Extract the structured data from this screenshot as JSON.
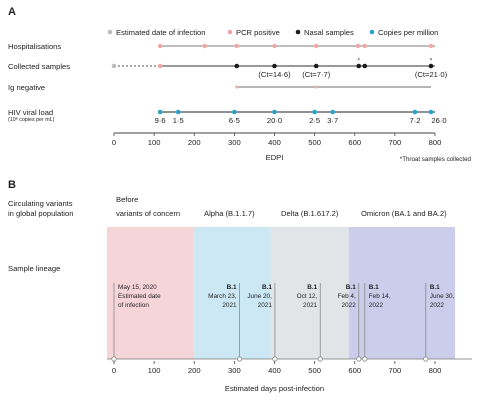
{
  "panelA": {
    "letter": "A",
    "legend": [
      {
        "label": "Estimated date of infection",
        "color": "#bdbdbd"
      },
      {
        "label": "PCR positive",
        "color": "#f4a6a6"
      },
      {
        "label": "Nasal samples",
        "color": "#1a1a1a"
      },
      {
        "label": "Copies per million",
        "color": "#2aa3c9"
      }
    ],
    "rows": [
      {
        "label": "Hospitalisations"
      },
      {
        "label": "Collected samples"
      },
      {
        "label": "Ig negative"
      },
      {
        "label": "HIV viral load",
        "sublabel": "(10⁶ copies per mL)"
      }
    ],
    "axis": {
      "ticks": [
        0,
        100,
        200,
        300,
        400,
        500,
        600,
        700,
        800
      ],
      "xlabel": "EDPI",
      "domain": [
        0,
        800
      ]
    },
    "hospitalisation_days": [
      115,
      226,
      306,
      400,
      504,
      608,
      625,
      790
    ],
    "collected_samples": {
      "infection_day": 0,
      "samples": [
        306,
        400,
        504,
        610,
        625,
        790
      ],
      "throat_markers": [
        610,
        790
      ],
      "throat_marker_symbol": "*",
      "ct_labels": [
        {
          "day": 400,
          "text": "(Ct=14·6)"
        },
        {
          "day": 504,
          "text": "(Ct=7·7)"
        },
        {
          "day": 790,
          "text": "(Ct=21·0)"
        }
      ]
    },
    "ig_negative": {
      "start": 306,
      "end": 790,
      "marks": [
        306,
        504
      ]
    },
    "viral_load": {
      "points": [
        {
          "day": 115,
          "text": "9·6"
        },
        {
          "day": 160,
          "text": "1·5"
        },
        {
          "day": 300,
          "text": "6·5"
        },
        {
          "day": 400,
          "text": "20·0"
        },
        {
          "day": 500,
          "text": "2·5"
        },
        {
          "day": 545,
          "text": "3·7"
        },
        {
          "day": 750,
          "text": "7·2"
        },
        {
          "day": 790,
          "text": "26·0"
        }
      ]
    },
    "footnote": "*Throat samples collected"
  },
  "panelB": {
    "letter": "B",
    "row_labels": {
      "variants": [
        "Circulating variants",
        "in global population"
      ],
      "lineage": "Sample lineage"
    },
    "eras": [
      {
        "title": [
          "Before",
          "variants of concern"
        ],
        "start": -20,
        "end": 200,
        "color": "#f5d5d8"
      },
      {
        "title": [
          "Alpha (B.1.1.7)"
        ],
        "start": 200,
        "end": 390,
        "color": "#cce8f4"
      },
      {
        "title": [
          "Delta (B.1.617.2)"
        ],
        "start": 390,
        "end": 585,
        "color": "#e2e4e7"
      },
      {
        "title": [
          "Omicron (BA.1 and BA.2)"
        ],
        "start": 585,
        "end": 850,
        "color": "#cbcdea"
      }
    ],
    "events": [
      {
        "day": 0,
        "lines": [
          "May 15, 2020",
          "Estimated date",
          "of infection"
        ],
        "side": "right"
      },
      {
        "day": 313,
        "lineage": "B.1",
        "lines": [
          "March 23,",
          "2021"
        ],
        "side": "left"
      },
      {
        "day": 401,
        "lineage": "B.1",
        "lines": [
          "June 20,",
          "2021"
        ],
        "side": "left"
      },
      {
        "day": 514,
        "lineage": "B.1",
        "lines": [
          "Oct 12,",
          "2021"
        ],
        "side": "left"
      },
      {
        "day": 610,
        "lineage": "B.1",
        "lines": [
          "Feb 4,",
          "2022"
        ],
        "side": "left"
      },
      {
        "day": 625,
        "lineage": "B.1",
        "lines": [
          "Feb 14,",
          "2022"
        ],
        "side": "right"
      },
      {
        "day": 777,
        "lineage": "B.1",
        "lines": [
          "June 30,",
          "2022"
        ],
        "side": "right"
      }
    ],
    "axis": {
      "ticks": [
        0,
        100,
        200,
        300,
        400,
        500,
        600,
        700,
        800
      ],
      "xlabel": "Estimated days post-infection",
      "domain": [
        0,
        800
      ]
    }
  },
  "colors": {
    "pcr": "#f4a6a6",
    "nasal": "#1a1a1a",
    "copies": "#2aa3c9",
    "estimated": "#bdbdbd",
    "hosp_line": "#999999",
    "ig_line": "#8a8a8a",
    "axis": "#444444"
  }
}
